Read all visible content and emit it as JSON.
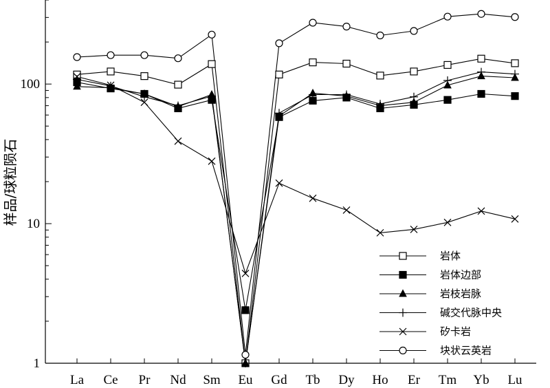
{
  "chart_data": {
    "type": "line",
    "title": "",
    "xlabel": "",
    "ylabel": "样品/球粒陨石",
    "yscale": "log",
    "ylim": [
      1,
      400
    ],
    "yticks": [
      {
        "value": 1,
        "label": "1"
      },
      {
        "value": 10,
        "label": "10"
      },
      {
        "value": 100,
        "label": "100"
      }
    ],
    "categories": [
      "La",
      "Ce",
      "Pr",
      "Nd",
      "Sm",
      "Eu",
      "Gd",
      "Tb",
      "Dy",
      "Ho",
      "Er",
      "Tm",
      "Yb",
      "Lu"
    ],
    "legend_position": "bottom-right",
    "series": [
      {
        "name": "岩体",
        "marker": "square-open",
        "values": [
          117,
          123,
          114,
          99,
          139,
          1.0,
          117,
          143,
          140,
          115,
          123,
          137,
          152,
          141
        ]
      },
      {
        "name": "岩体边部",
        "marker": "square-filled",
        "values": [
          103,
          93,
          85,
          67,
          77,
          2.4,
          58,
          76,
          80,
          67,
          71,
          77,
          85,
          82
        ]
      },
      {
        "name": "岩枝岩脉",
        "marker": "triangle-filled",
        "values": [
          96,
          94,
          85,
          69,
          84,
          1.0,
          59,
          86,
          82,
          70,
          74,
          98,
          114,
          111
        ]
      },
      {
        "name": "碱交代脉中央",
        "marker": "plus",
        "values": [
          108,
          97,
          81,
          70,
          82,
          1.0,
          62,
          84,
          84,
          72,
          81,
          106,
          122,
          118
        ]
      },
      {
        "name": "矽卡岩",
        "marker": "x",
        "values": [
          113,
          98,
          74,
          39,
          28,
          4.4,
          19.5,
          15.2,
          12.5,
          8.6,
          9.1,
          10.2,
          12.3,
          10.8
        ]
      },
      {
        "name": "块状云英岩",
        "marker": "circle-open",
        "values": [
          156,
          161,
          161,
          153,
          226,
          1.15,
          196,
          275,
          258,
          223,
          240,
          304,
          318,
          302
        ]
      }
    ]
  }
}
